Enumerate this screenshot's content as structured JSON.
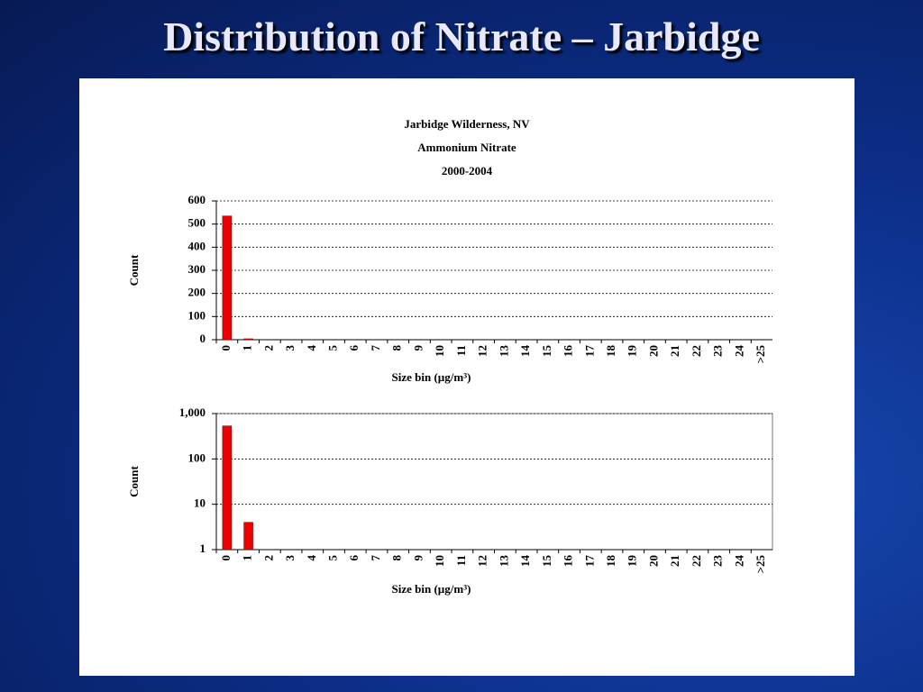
{
  "slide_title": "Distribution of Nitrate – Jarbidge",
  "chart_data": [
    {
      "type": "bar",
      "title": [
        "Jarbidge Wilderness, NV",
        "Ammonium Nitrate",
        "2000-2004"
      ],
      "x_label": "Size bin (µg/m³)",
      "y_label": "Count",
      "categories": [
        "0",
        "1",
        "2",
        "3",
        "4",
        "5",
        "6",
        "7",
        "8",
        "9",
        "10",
        "11",
        "12",
        "13",
        "14",
        "15",
        "16",
        "17",
        "18",
        "19",
        "20",
        "21",
        "22",
        "23",
        "24",
        ">25"
      ],
      "values": [
        535,
        4,
        0,
        0,
        0,
        0,
        0,
        0,
        0,
        0,
        0,
        0,
        0,
        0,
        0,
        0,
        0,
        0,
        0,
        0,
        0,
        0,
        0,
        0,
        0,
        0
      ],
      "color": "#ee0000",
      "ylim": [
        0,
        600
      ],
      "yticks": [
        0,
        100,
        200,
        300,
        400,
        500,
        600
      ],
      "log_scale": false,
      "grid": true
    },
    {
      "type": "bar",
      "x_label": "Size bin (µg/m³)",
      "y_label": "Count",
      "categories": [
        "0",
        "1",
        "2",
        "3",
        "4",
        "5",
        "6",
        "7",
        "8",
        "9",
        "10",
        "11",
        "12",
        "13",
        "14",
        "15",
        "16",
        "17",
        "18",
        "19",
        "20",
        "21",
        "22",
        "23",
        "24",
        ">25"
      ],
      "values": [
        535,
        4,
        0,
        0,
        0,
        0,
        0,
        0,
        0,
        0,
        0,
        0,
        0,
        0,
        0,
        0,
        0,
        0,
        0,
        0,
        0,
        0,
        0,
        0,
        0,
        0
      ],
      "color": "#ee0000",
      "ylim": [
        1,
        1000
      ],
      "yticks": [
        1,
        10,
        100,
        {
          "value": 1000,
          "label": "1,000"
        }
      ],
      "log_scale": true,
      "grid": true
    }
  ]
}
